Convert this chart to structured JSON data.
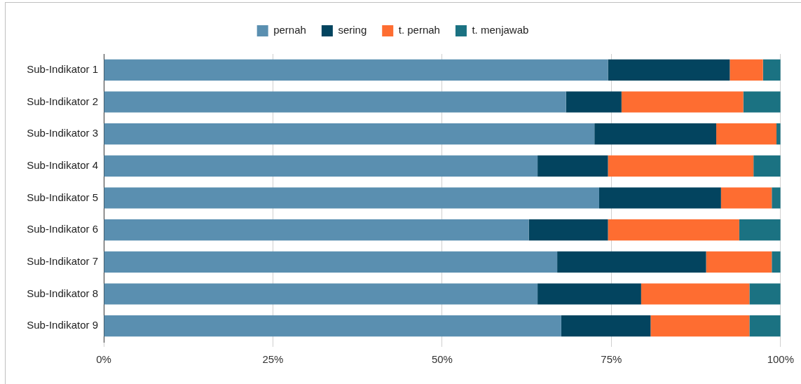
{
  "chart_data": {
    "type": "bar",
    "orientation": "horizontal",
    "stacked": true,
    "categories": [
      "Sub-Indikator 1",
      "Sub-Indikator 2",
      "Sub-Indikator 3",
      "Sub-Indikator 4",
      "Sub-Indikator 5",
      "Sub-Indikator 6",
      "Sub-Indikator 7",
      "Sub-Indikator 8",
      "Sub-Indikator 9"
    ],
    "series": [
      {
        "name": "pernah",
        "color": "#5a8fb0",
        "values": [
          74.5,
          68.3,
          72.5,
          64.1,
          73.2,
          62.8,
          67.0,
          64.1,
          67.6
        ]
      },
      {
        "name": "sering",
        "color": "#03445f",
        "values": [
          18.0,
          8.2,
          18.0,
          10.4,
          18.0,
          11.7,
          22.0,
          15.3,
          13.2
        ]
      },
      {
        "name": "t. pernah",
        "color": "#fe6d31",
        "values": [
          4.9,
          18.0,
          8.9,
          21.5,
          7.5,
          19.4,
          9.7,
          16.0,
          14.6
        ]
      },
      {
        "name": "t. menjawab",
        "color": "#1b7282",
        "values": [
          2.6,
          5.5,
          0.6,
          4.0,
          1.3,
          6.1,
          1.3,
          4.6,
          4.6
        ]
      }
    ],
    "xlim": [
      0,
      100
    ],
    "xticks": [
      {
        "value": 0,
        "label": "0%"
      },
      {
        "value": 25,
        "label": "25%"
      },
      {
        "value": 50,
        "label": "50%"
      },
      {
        "value": 75,
        "label": "75%"
      },
      {
        "value": 100,
        "label": "100%"
      }
    ],
    "grid": "x",
    "legend": "top"
  }
}
